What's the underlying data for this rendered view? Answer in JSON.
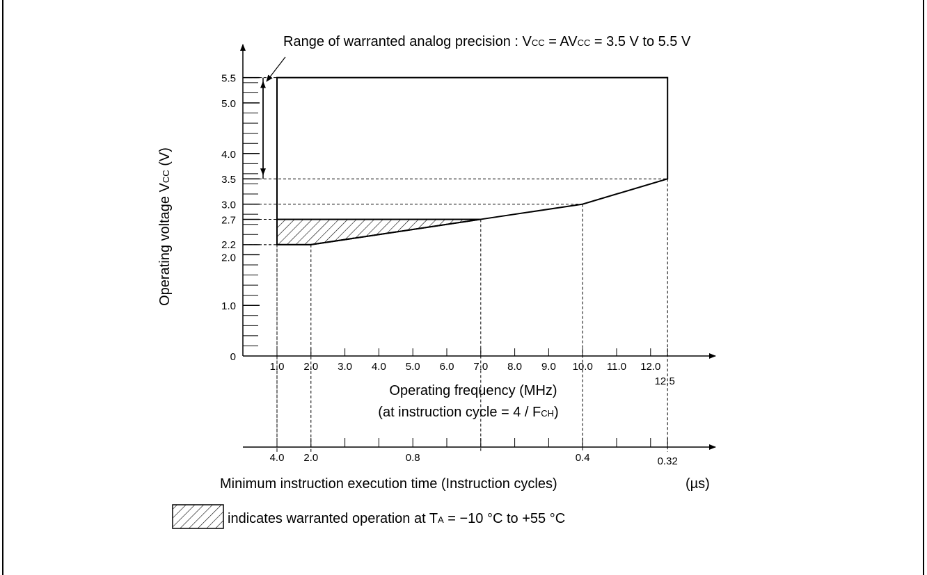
{
  "chart_data": {
    "type": "area",
    "title_parts": [
      "Range of warranted analog precision : V",
      "CC",
      " = AV",
      "CC",
      " = 3.5 V to 5.5 V"
    ],
    "ylabel_parts": [
      "Operating voltage V",
      "CC",
      " (V)"
    ],
    "xlabel": "Operating frequency (MHz)",
    "xlabel2_parts": [
      "(at instruction cycle = 4 / F",
      "CH",
      ")"
    ],
    "x2label": "Minimum instruction execution time (Instruction cycles)",
    "x2unit": "(µs)",
    "legend_parts": [
      "indicates warranted operation at T",
      "A",
      " = −10 °C to +55 °C"
    ],
    "legend_placement": "bottom-left",
    "ylim": [
      0,
      5.5
    ],
    "xlim": [
      0,
      12.5
    ],
    "y_ticks": [
      {
        "value": 0,
        "label": "0"
      },
      {
        "value": 1.0,
        "label": "1.0"
      },
      {
        "value": 2.0,
        "label": "2.0"
      },
      {
        "value": 2.2,
        "label": "2.2"
      },
      {
        "value": 2.7,
        "label": "2.7"
      },
      {
        "value": 3.0,
        "label": "3.0"
      },
      {
        "value": 3.5,
        "label": "3.5"
      },
      {
        "value": 4.0,
        "label": "4.0"
      },
      {
        "value": 5.0,
        "label": "5.0"
      },
      {
        "value": 5.5,
        "label": "5.5"
      }
    ],
    "x_ticks": [
      {
        "value": 1.0,
        "label": "1.0"
      },
      {
        "value": 2.0,
        "label": "2.0"
      },
      {
        "value": 3.0,
        "label": "3.0"
      },
      {
        "value": 4.0,
        "label": "4.0"
      },
      {
        "value": 5.0,
        "label": "5.0"
      },
      {
        "value": 6.0,
        "label": "6.0"
      },
      {
        "value": 7.0,
        "label": "7.0"
      },
      {
        "value": 8.0,
        "label": "8.0"
      },
      {
        "value": 9.0,
        "label": "9.0"
      },
      {
        "value": 10.0,
        "label": "10.0"
      },
      {
        "value": 11.0,
        "label": "11.0"
      },
      {
        "value": 12.0,
        "label": "12.0"
      },
      {
        "value": 12.5,
        "label": "12.5"
      }
    ],
    "x2_ticks": [
      {
        "value": 1.0,
        "label": "4.0"
      },
      {
        "value": 2.0,
        "label": "2.0"
      },
      {
        "value": 3.0,
        "label": ""
      },
      {
        "value": 4.0,
        "label": ""
      },
      {
        "value": 5.0,
        "label": "0.8"
      },
      {
        "value": 6.0,
        "label": ""
      },
      {
        "value": 7.0,
        "label": ""
      },
      {
        "value": 8.0,
        "label": ""
      },
      {
        "value": 9.0,
        "label": ""
      },
      {
        "value": 10.0,
        "label": "0.4"
      },
      {
        "value": 11.0,
        "label": ""
      },
      {
        "value": 12.0,
        "label": ""
      },
      {
        "value": 12.5,
        "label": "0.32"
      }
    ],
    "operating_region": [
      {
        "x": 1.0,
        "y": 5.5
      },
      {
        "x": 12.5,
        "y": 5.5
      },
      {
        "x": 12.5,
        "y": 3.5
      },
      {
        "x": 10.0,
        "y": 3.0
      },
      {
        "x": 7.0,
        "y": 2.7
      },
      {
        "x": 2.0,
        "y": 2.2
      },
      {
        "x": 1.0,
        "y": 2.2
      }
    ],
    "hatched_region": [
      {
        "x": 1.0,
        "y": 2.7
      },
      {
        "x": 7.0,
        "y": 2.7
      },
      {
        "x": 2.0,
        "y": 2.2
      },
      {
        "x": 1.0,
        "y": 2.2
      }
    ],
    "analog_precision_range": [
      3.5,
      5.5
    ],
    "guide_points": [
      {
        "x": 1.0,
        "y": 2.2
      },
      {
        "x": 2.0,
        "y": 2.2
      },
      {
        "x": 1.0,
        "y": 2.7
      },
      {
        "x": 7.0,
        "y": 2.7
      },
      {
        "x": 10.0,
        "y": 3.0
      },
      {
        "x": 12.5,
        "y": 3.5
      },
      {
        "x": 1.0,
        "y": 5.5
      }
    ]
  }
}
